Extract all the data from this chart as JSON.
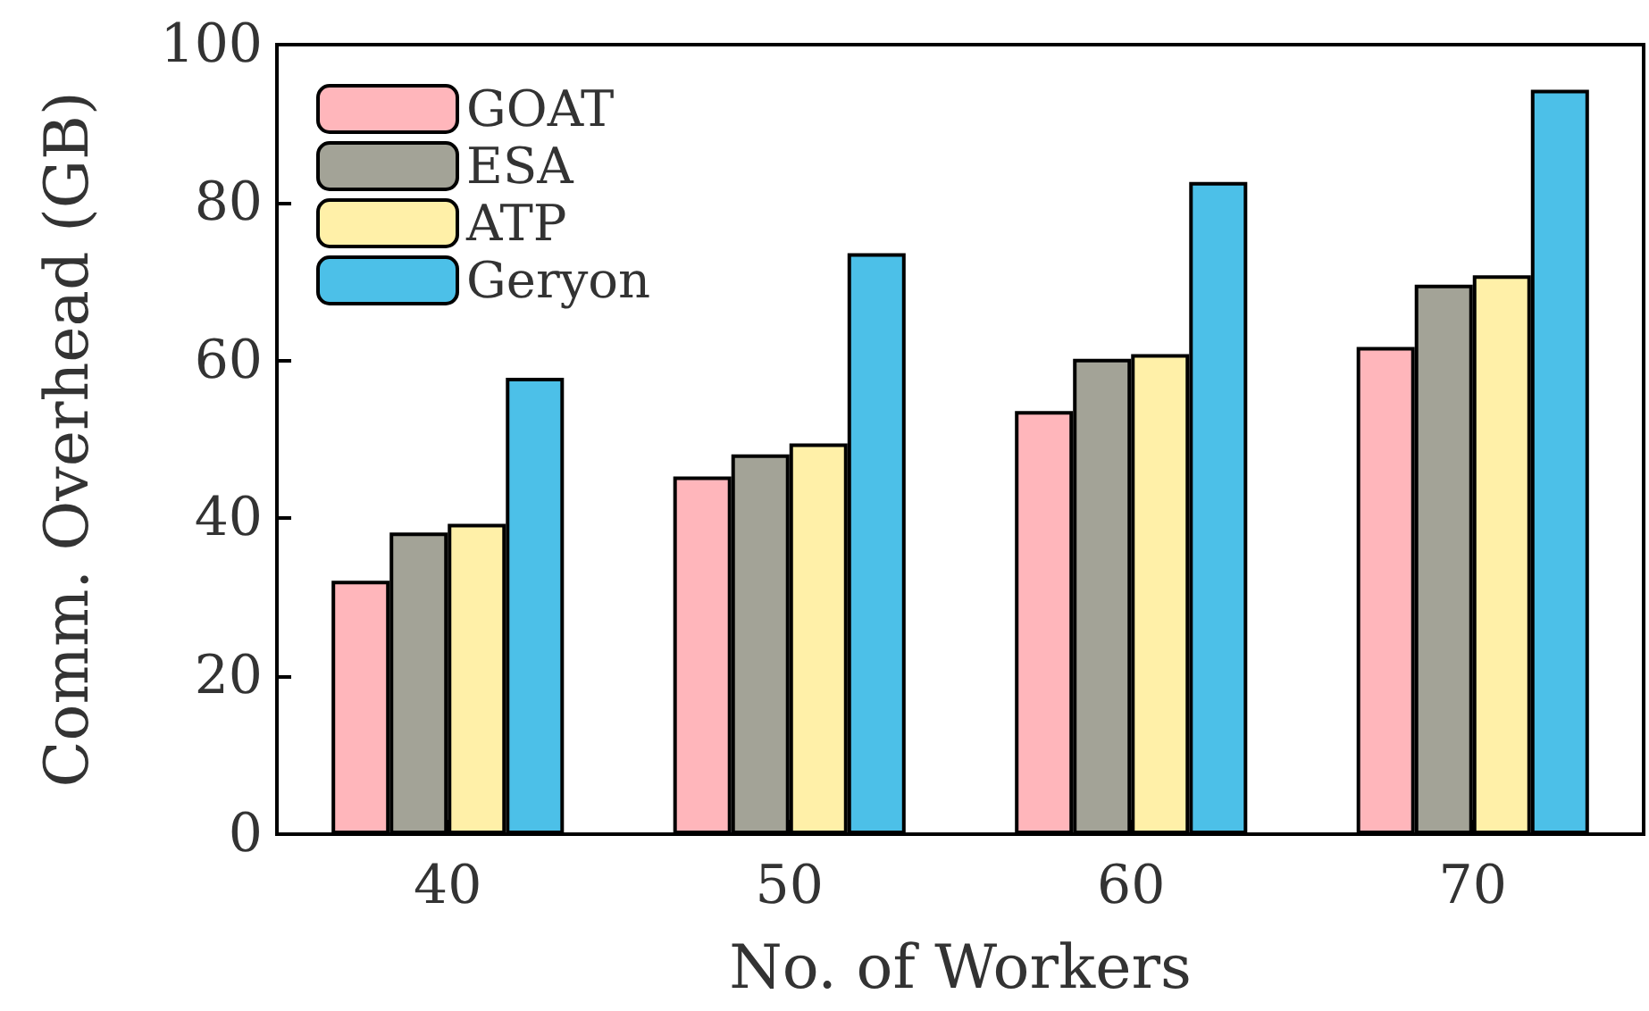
{
  "chart_data": {
    "type": "bar",
    "xlabel": "No. of Workers",
    "ylabel": "Comm. Overhead (GB)",
    "categories": [
      "40",
      "50",
      "60",
      "70"
    ],
    "series": [
      {
        "name": "GOAT",
        "color": "#ffb6bb",
        "values": [
          32.1,
          45.3,
          53.6,
          61.7
        ]
      },
      {
        "name": "ESA",
        "color": "#a3a397",
        "values": [
          38.2,
          48.1,
          60.2,
          69.6
        ]
      },
      {
        "name": "ATP",
        "color": "#fff0a8",
        "values": [
          39.3,
          49.5,
          60.8,
          70.8
        ]
      },
      {
        "name": "Geryon",
        "color": "#4cc0e8",
        "values": [
          57.8,
          73.6,
          82.6,
          94.3
        ]
      }
    ],
    "ylim": [
      0,
      100
    ],
    "yticks": [
      0,
      20,
      40,
      60,
      80,
      100
    ],
    "grid": false,
    "legend": "top left"
  }
}
